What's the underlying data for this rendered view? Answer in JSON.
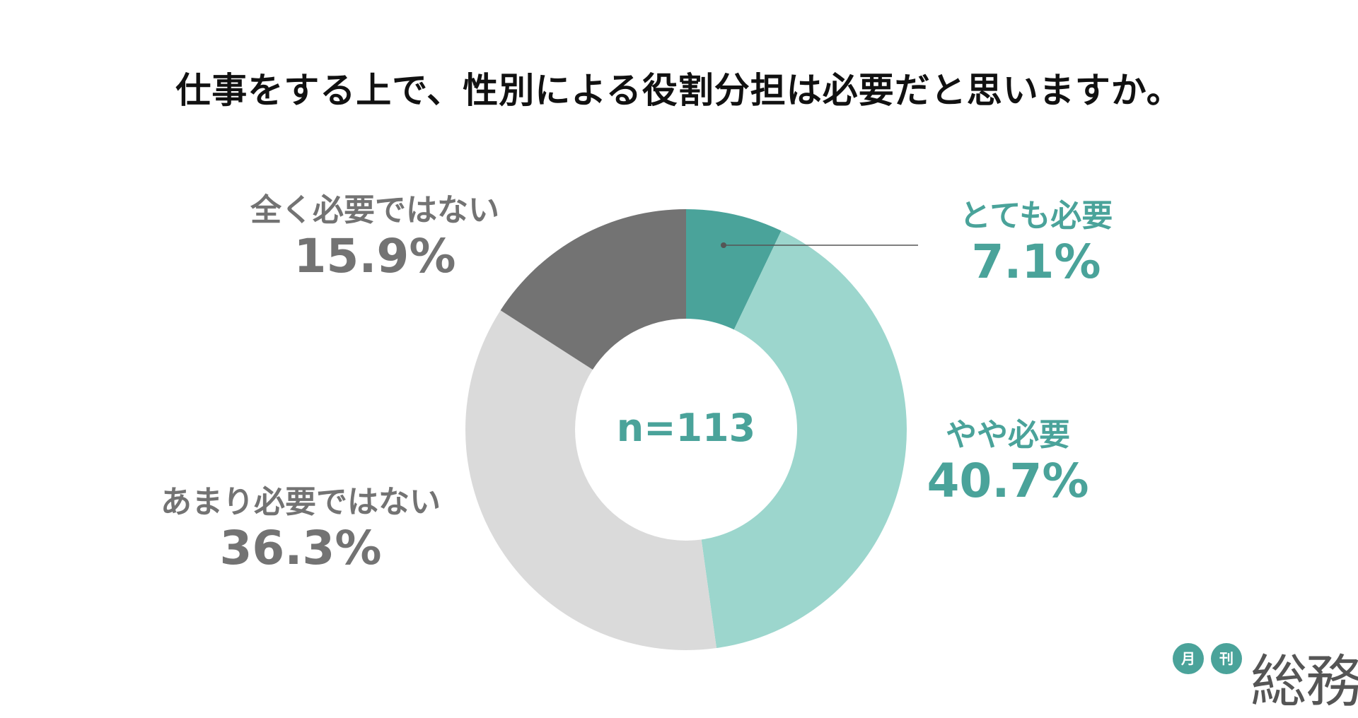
{
  "title": "仕事をする上で、性別による役割分担は必要だと思いますか。",
  "center_text": "n=113",
  "colors": {
    "teal_dark": "#4aa39a",
    "teal_light": "#9cd6cd",
    "gray_light": "#dadada",
    "gray_dark": "#737373",
    "label_teal": "#4aa39a",
    "label_gray": "#737373"
  },
  "chart_data": {
    "type": "pie",
    "donut": true,
    "start_angle_deg": 0,
    "direction": "clockwise",
    "slices": [
      {
        "label": "とても必要",
        "value": 7.1,
        "value_label": "7.1%",
        "color": "#4aa39a"
      },
      {
        "label": "やや必要",
        "value": 40.7,
        "value_label": "40.7%",
        "color": "#9cd6cd"
      },
      {
        "label": "あまり必要ではない",
        "value": 36.3,
        "value_label": "36.3%",
        "color": "#dadada"
      },
      {
        "label": "全く必要ではない",
        "value": 15.9,
        "value_label": "15.9%",
        "color": "#737373"
      }
    ]
  },
  "logo": {
    "char1": "月",
    "char2": "刊",
    "word": "総務"
  }
}
